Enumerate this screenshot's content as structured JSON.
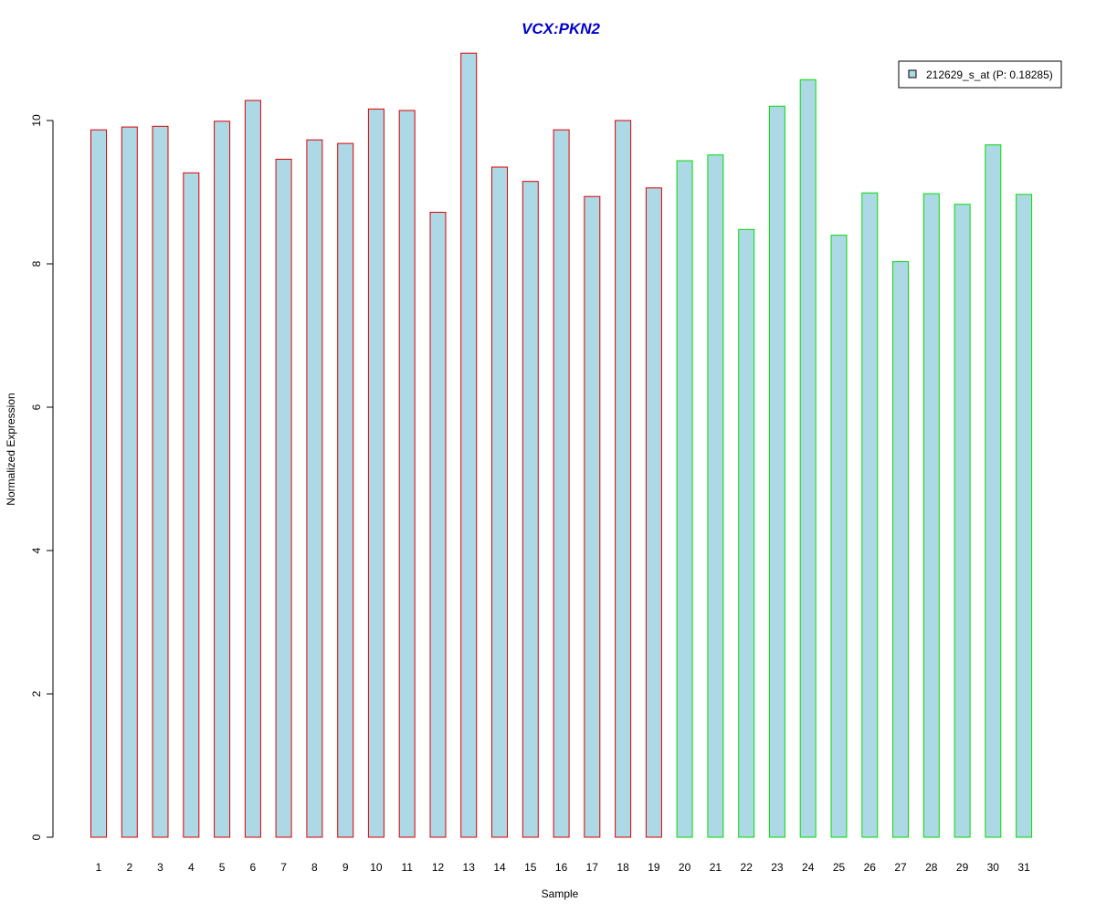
{
  "chart_data": {
    "type": "bar",
    "title": "VCX:PKN2",
    "xlabel": "Sample",
    "ylabel": "Normalized Expression",
    "ylim": [
      0,
      11
    ],
    "yticks": [
      0,
      2,
      4,
      6,
      8,
      10
    ],
    "grid": false,
    "legend_position": "top-right",
    "categories": [
      "1",
      "2",
      "3",
      "4",
      "5",
      "6",
      "7",
      "8",
      "9",
      "10",
      "11",
      "12",
      "13",
      "14",
      "15",
      "16",
      "17",
      "18",
      "19",
      "20",
      "21",
      "22",
      "23",
      "24",
      "25",
      "26",
      "27",
      "28",
      "29",
      "30",
      "31"
    ],
    "series": [
      {
        "name": "212629_s_at (P: 0.18285)",
        "values": [
          9.87,
          9.91,
          9.92,
          9.27,
          9.99,
          10.28,
          9.46,
          9.73,
          9.68,
          10.16,
          10.14,
          8.72,
          10.94,
          9.35,
          9.15,
          9.87,
          8.94,
          10.0,
          9.06,
          9.44,
          9.52,
          8.48,
          10.2,
          10.57,
          8.4,
          8.99,
          8.03,
          8.98,
          8.83,
          9.66,
          8.97
        ]
      }
    ],
    "groups": [
      {
        "range": [
          1,
          19
        ],
        "border_color": "#dd0000"
      },
      {
        "range": [
          20,
          31
        ],
        "border_color": "#00dd00"
      }
    ],
    "colors": {
      "bar_fill": "#add8e6",
      "title": "#0000cc",
      "axis": "#000000"
    }
  }
}
